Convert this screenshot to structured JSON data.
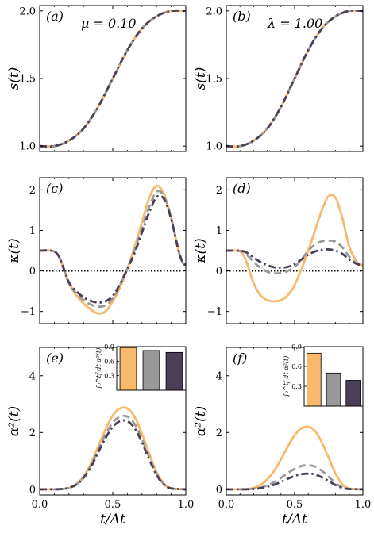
{
  "colors": {
    "orange": "#f8b96c",
    "gray": "#999999",
    "dark": "#4b3f58",
    "zero": "#000000"
  },
  "chart_data": {
    "type": "line",
    "xlabel": "t/Δt",
    "x_tick_labels": [
      "0.0",
      "0.5",
      "1.0"
    ],
    "panels": [
      {
        "id": "a",
        "tag": "(a)",
        "param": "μ = 0.10",
        "ylabel": "s(t)",
        "ylim": [
          0.96,
          2.04
        ],
        "y_ticks": [
          {
            "value": 1.0,
            "label": "1.0"
          },
          {
            "value": 1.5,
            "label": "1.5"
          },
          {
            "value": 2.0,
            "label": "2.0"
          }
        ],
        "series": [
          {
            "style": "orange-solid",
            "x": [
              0,
              0.1,
              0.2,
              0.3,
              0.4,
              0.5,
              0.6,
              0.7,
              0.8,
              0.9,
              1.0
            ],
            "y": [
              1.0,
              1.0,
              1.04,
              1.13,
              1.29,
              1.5,
              1.71,
              1.87,
              1.96,
              2.0,
              2.0
            ]
          },
          {
            "style": "gray-dash",
            "x": [
              0,
              0.1,
              0.2,
              0.3,
              0.4,
              0.5,
              0.6,
              0.7,
              0.8,
              0.9,
              1.0
            ],
            "y": [
              1.0,
              1.0,
              1.04,
              1.13,
              1.29,
              1.5,
              1.71,
              1.87,
              1.96,
              2.0,
              2.0
            ]
          },
          {
            "style": "dark-dashdot",
            "x": [
              0,
              0.1,
              0.2,
              0.3,
              0.4,
              0.5,
              0.6,
              0.7,
              0.8,
              0.9,
              1.0
            ],
            "y": [
              1.0,
              1.0,
              1.04,
              1.13,
              1.29,
              1.5,
              1.71,
              1.87,
              1.96,
              2.0,
              2.0
            ]
          }
        ]
      },
      {
        "id": "b",
        "tag": "(b)",
        "param": "λ = 1.00",
        "ylabel": "s(t)",
        "ylim": [
          0.96,
          2.04
        ],
        "y_ticks": [
          {
            "value": 1.0,
            "label": "1.0"
          },
          {
            "value": 1.5,
            "label": "1.5"
          },
          {
            "value": 2.0,
            "label": "2.0"
          }
        ],
        "series": [
          {
            "style": "orange-solid",
            "x": [
              0,
              0.1,
              0.2,
              0.3,
              0.4,
              0.5,
              0.6,
              0.7,
              0.8,
              0.9,
              1.0
            ],
            "y": [
              1.0,
              1.0,
              1.04,
              1.13,
              1.29,
              1.5,
              1.71,
              1.87,
              1.96,
              2.0,
              2.0
            ]
          },
          {
            "style": "gray-dash",
            "x": [
              0,
              0.1,
              0.2,
              0.3,
              0.4,
              0.5,
              0.6,
              0.7,
              0.8,
              0.9,
              1.0
            ],
            "y": [
              1.0,
              1.0,
              1.04,
              1.13,
              1.29,
              1.5,
              1.71,
              1.87,
              1.96,
              2.0,
              2.0
            ]
          },
          {
            "style": "dark-dashdot",
            "x": [
              0,
              0.1,
              0.2,
              0.3,
              0.4,
              0.5,
              0.6,
              0.7,
              0.8,
              0.9,
              1.0
            ],
            "y": [
              1.0,
              1.0,
              1.04,
              1.13,
              1.29,
              1.5,
              1.71,
              1.87,
              1.96,
              2.0,
              2.0
            ]
          }
        ]
      },
      {
        "id": "c",
        "tag": "(c)",
        "ylabel": "κ(t)",
        "ylim": [
          -1.3,
          2.3
        ],
        "zero_line": true,
        "y_ticks": [
          {
            "value": -1,
            "label": "−1"
          },
          {
            "value": 0,
            "label": "0"
          },
          {
            "value": 1,
            "label": "1"
          },
          {
            "value": 2,
            "label": "2"
          }
        ],
        "series": [
          {
            "style": "orange-solid",
            "x": [
              0,
              0.08,
              0.12,
              0.15,
              0.2,
              0.25,
              0.3,
              0.35,
              0.4,
              0.45,
              0.5,
              0.55,
              0.6,
              0.65,
              0.7,
              0.75,
              0.8,
              0.85,
              0.9,
              0.95,
              0.98,
              1.0
            ],
            "y": [
              0.5,
              0.5,
              0.42,
              0.2,
              -0.3,
              -0.6,
              -0.8,
              -0.95,
              -1.05,
              -1.0,
              -0.75,
              -0.4,
              0.05,
              0.6,
              1.2,
              1.8,
              2.1,
              1.9,
              1.3,
              0.5,
              0.2,
              0.15
            ]
          },
          {
            "style": "gray-dash",
            "x": [
              0,
              0.08,
              0.12,
              0.15,
              0.2,
              0.25,
              0.3,
              0.35,
              0.4,
              0.45,
              0.5,
              0.55,
              0.6,
              0.65,
              0.7,
              0.75,
              0.8,
              0.85,
              0.9,
              0.95,
              0.98,
              1.0
            ],
            "y": [
              0.5,
              0.5,
              0.42,
              0.2,
              -0.3,
              -0.55,
              -0.72,
              -0.83,
              -0.88,
              -0.85,
              -0.68,
              -0.35,
              0.05,
              0.52,
              1.05,
              1.58,
              1.95,
              1.85,
              1.3,
              0.5,
              0.2,
              0.15
            ]
          },
          {
            "style": "dark-dashdot",
            "x": [
              0,
              0.08,
              0.12,
              0.15,
              0.2,
              0.25,
              0.3,
              0.35,
              0.4,
              0.45,
              0.5,
              0.55,
              0.6,
              0.65,
              0.7,
              0.75,
              0.8,
              0.85,
              0.9,
              0.95,
              0.98,
              1.0
            ],
            "y": [
              0.5,
              0.5,
              0.42,
              0.2,
              -0.28,
              -0.5,
              -0.65,
              -0.74,
              -0.78,
              -0.75,
              -0.62,
              -0.32,
              0.05,
              0.45,
              0.95,
              1.45,
              1.82,
              1.78,
              1.28,
              0.5,
              0.2,
              0.15
            ]
          }
        ]
      },
      {
        "id": "d",
        "tag": "(d)",
        "ylabel": "κ(t)",
        "ylim": [
          -1.3,
          2.3
        ],
        "zero_line": true,
        "y_ticks": [
          {
            "value": -1,
            "label": "−1"
          },
          {
            "value": 0,
            "label": "0"
          },
          {
            "value": 1,
            "label": "1"
          },
          {
            "value": 2,
            "label": "2"
          }
        ],
        "series": [
          {
            "style": "orange-solid",
            "x": [
              0,
              0.08,
              0.12,
              0.15,
              0.2,
              0.25,
              0.3,
              0.35,
              0.4,
              0.45,
              0.5,
              0.55,
              0.6,
              0.65,
              0.7,
              0.75,
              0.8,
              0.85,
              0.9,
              0.95,
              0.98,
              1.0
            ],
            "y": [
              0.5,
              0.5,
              0.42,
              0.2,
              -0.3,
              -0.6,
              -0.72,
              -0.75,
              -0.72,
              -0.6,
              -0.35,
              0.05,
              0.5,
              1.0,
              1.5,
              1.85,
              1.8,
              1.3,
              0.6,
              0.25,
              0.15,
              0.15
            ]
          },
          {
            "style": "gray-dash",
            "x": [
              0,
              0.08,
              0.12,
              0.15,
              0.2,
              0.25,
              0.3,
              0.35,
              0.4,
              0.45,
              0.5,
              0.55,
              0.6,
              0.65,
              0.7,
              0.75,
              0.8,
              0.85,
              0.9,
              0.95,
              0.98,
              1.0
            ],
            "y": [
              0.5,
              0.5,
              0.48,
              0.4,
              0.22,
              0.08,
              -0.02,
              -0.06,
              -0.05,
              0.0,
              0.1,
              0.28,
              0.5,
              0.65,
              0.73,
              0.75,
              0.72,
              0.58,
              0.35,
              0.2,
              0.15,
              0.15
            ]
          },
          {
            "style": "dark-dashdot",
            "x": [
              0,
              0.08,
              0.12,
              0.15,
              0.2,
              0.25,
              0.3,
              0.35,
              0.4,
              0.45,
              0.5,
              0.55,
              0.6,
              0.65,
              0.7,
              0.75,
              0.8,
              0.85,
              0.9,
              0.95,
              0.98,
              1.0
            ],
            "y": [
              0.5,
              0.5,
              0.49,
              0.45,
              0.33,
              0.22,
              0.14,
              0.09,
              0.08,
              0.1,
              0.17,
              0.28,
              0.4,
              0.48,
              0.52,
              0.53,
              0.5,
              0.42,
              0.28,
              0.18,
              0.15,
              0.15
            ]
          }
        ]
      },
      {
        "id": "e",
        "tag": "(e)",
        "ylabel": "α²(t)",
        "ylim": [
          -0.2,
          5.0
        ],
        "y_ticks": [
          {
            "value": 0,
            "label": "0"
          },
          {
            "value": 2,
            "label": "2"
          },
          {
            "value": 4,
            "label": "4"
          }
        ],
        "series": [
          {
            "style": "orange-solid",
            "x": [
              0,
              0.1,
              0.15,
              0.2,
              0.25,
              0.3,
              0.35,
              0.4,
              0.45,
              0.5,
              0.55,
              0.6,
              0.65,
              0.7,
              0.75,
              0.8,
              0.85,
              0.9,
              1.0
            ],
            "y": [
              0,
              0,
              0.01,
              0.05,
              0.18,
              0.45,
              0.9,
              1.5,
              2.1,
              2.6,
              2.85,
              2.85,
              2.55,
              1.95,
              1.25,
              0.6,
              0.2,
              0.03,
              0
            ]
          },
          {
            "style": "gray-dash",
            "x": [
              0,
              0.1,
              0.15,
              0.2,
              0.25,
              0.3,
              0.35,
              0.4,
              0.45,
              0.5,
              0.55,
              0.6,
              0.65,
              0.7,
              0.75,
              0.8,
              0.85,
              0.9,
              1.0
            ],
            "y": [
              0,
              0,
              0.01,
              0.05,
              0.17,
              0.42,
              0.83,
              1.38,
              1.92,
              2.35,
              2.56,
              2.56,
              2.3,
              1.76,
              1.12,
              0.55,
              0.18,
              0.03,
              0
            ]
          },
          {
            "style": "dark-dashdot",
            "x": [
              0,
              0.1,
              0.15,
              0.2,
              0.25,
              0.3,
              0.35,
              0.4,
              0.45,
              0.5,
              0.55,
              0.6,
              0.65,
              0.7,
              0.75,
              0.8,
              0.85,
              0.9,
              1.0
            ],
            "y": [
              0,
              0,
              0.01,
              0.05,
              0.16,
              0.4,
              0.78,
              1.3,
              1.8,
              2.2,
              2.4,
              2.4,
              2.15,
              1.65,
              1.05,
              0.5,
              0.17,
              0.03,
              0
            ]
          }
        ],
        "inset": {
          "ylabel": "∫₀^tf dt α²(t)",
          "ylim": [
            0,
            0.9
          ],
          "y_ticks": [
            {
              "value": 0.3,
              "label": "0.3"
            },
            {
              "value": 0.6,
              "label": "0.6"
            },
            {
              "value": 0.9,
              "label": "0.9"
            }
          ],
          "bars": [
            {
              "color": "orange",
              "value": 0.88
            },
            {
              "color": "gray",
              "value": 0.82
            },
            {
              "color": "dark",
              "value": 0.78
            }
          ]
        }
      },
      {
        "id": "f",
        "tag": "(f)",
        "ylabel": "α²(t)",
        "ylim": [
          -0.2,
          5.0
        ],
        "y_ticks": [
          {
            "value": 0,
            "label": "0"
          },
          {
            "value": 2,
            "label": "2"
          },
          {
            "value": 4,
            "label": "4"
          }
        ],
        "series": [
          {
            "style": "orange-solid",
            "x": [
              0,
              0.1,
              0.15,
              0.2,
              0.25,
              0.3,
              0.35,
              0.4,
              0.45,
              0.5,
              0.55,
              0.6,
              0.65,
              0.7,
              0.75,
              0.8,
              0.85,
              0.9,
              1.0
            ],
            "y": [
              0,
              0,
              0.01,
              0.05,
              0.15,
              0.35,
              0.65,
              1.05,
              1.5,
              1.9,
              2.15,
              2.2,
              2.05,
              1.65,
              1.1,
              0.55,
              0.18,
              0.03,
              0
            ]
          },
          {
            "style": "gray-dash",
            "x": [
              0,
              0.1,
              0.15,
              0.2,
              0.25,
              0.3,
              0.35,
              0.4,
              0.45,
              0.5,
              0.55,
              0.6,
              0.65,
              0.7,
              0.75,
              0.8,
              0.85,
              0.9,
              1.0
            ],
            "y": [
              0,
              0,
              0.0,
              0.02,
              0.06,
              0.13,
              0.25,
              0.4,
              0.57,
              0.72,
              0.82,
              0.85,
              0.8,
              0.65,
              0.44,
              0.22,
              0.07,
              0.01,
              0
            ]
          },
          {
            "style": "dark-dashdot",
            "x": [
              0,
              0.1,
              0.15,
              0.2,
              0.25,
              0.3,
              0.35,
              0.4,
              0.45,
              0.5,
              0.55,
              0.6,
              0.65,
              0.7,
              0.75,
              0.8,
              0.85,
              0.9,
              1.0
            ],
            "y": [
              0,
              0,
              0.0,
              0.01,
              0.04,
              0.09,
              0.16,
              0.26,
              0.37,
              0.47,
              0.53,
              0.55,
              0.52,
              0.42,
              0.29,
              0.15,
              0.05,
              0.01,
              0
            ]
          }
        ],
        "inset": {
          "ylabel": "∫₀^tf dt α²(t)",
          "ylim": [
            0,
            0.9
          ],
          "y_ticks": [
            {
              "value": 0.3,
              "label": "0.3"
            },
            {
              "value": 0.6,
              "label": "0.6"
            },
            {
              "value": 0.9,
              "label": "0.9"
            }
          ],
          "bars": [
            {
              "color": "orange",
              "value": 0.8
            },
            {
              "color": "gray",
              "value": 0.5
            },
            {
              "color": "dark",
              "value": 0.39
            }
          ]
        }
      }
    ]
  }
}
